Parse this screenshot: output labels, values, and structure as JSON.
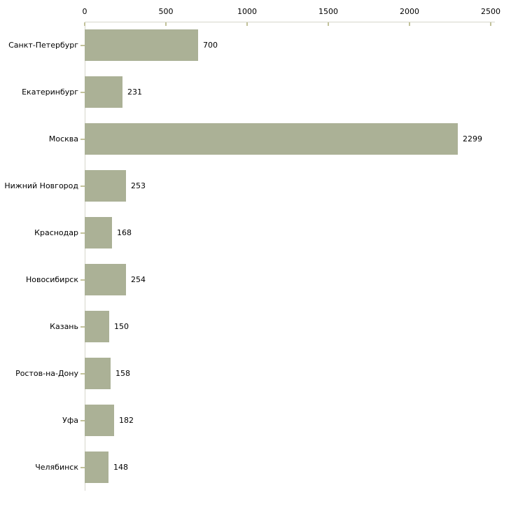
{
  "chart_data": {
    "type": "bar",
    "orientation": "horizontal",
    "title": "",
    "xlabel": "",
    "ylabel": "",
    "categories": [
      "Санкт-Петербург",
      "Екатеринбург",
      "Москва",
      "Нижний Новгород",
      "Краснодар",
      "Новосибирск",
      "Казань",
      "Ростов-на-Дону",
      "Уфа",
      "Челябинск"
    ],
    "values": [
      700,
      231,
      2299,
      253,
      168,
      254,
      150,
      158,
      182,
      148
    ],
    "value_labels": [
      "700",
      "231",
      "2299",
      "253",
      "168",
      "254",
      "150",
      "158",
      "182",
      "148"
    ],
    "x_ticks": [
      "0",
      "500",
      "1000",
      "1500",
      "2000",
      "2500"
    ],
    "x_tick_values": [
      0,
      500,
      1000,
      1500,
      2000,
      2500
    ],
    "xlim": [
      0,
      2500
    ],
    "grid": false,
    "legend": null,
    "axis_position": "top-left",
    "colors": {
      "bar_fill": "#abb196",
      "axis_line": "#d6d6cc",
      "tick_mark": "#c2c29a",
      "text": "#000000",
      "background": "#ffffff"
    }
  }
}
